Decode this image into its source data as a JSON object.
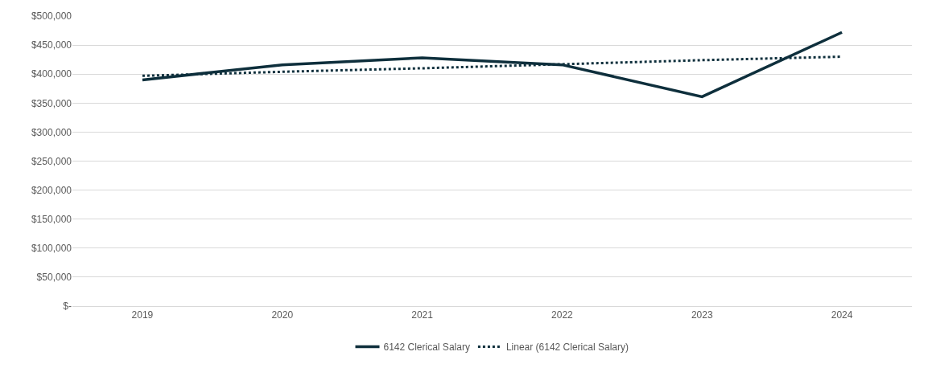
{
  "chart_data": {
    "type": "line",
    "categories": [
      "2019",
      "2020",
      "2021",
      "2022",
      "2023",
      "2024"
    ],
    "series": [
      {
        "name": "6142 Clerical Salary",
        "color": "#0e2f3c",
        "values": [
          390000,
          416000,
          428000,
          416000,
          361000,
          472000
        ],
        "line_style": "solid"
      },
      {
        "name": "Linear (6142 Clerical Salary)",
        "color": "#0e2f3c",
        "values": [
          397000,
          404000,
          410000,
          417000,
          424000,
          430000
        ],
        "line_style": "dotted"
      }
    ],
    "ylim": [
      0,
      500000
    ],
    "yticks": [
      {
        "value": 0,
        "label": "$-"
      },
      {
        "value": 50000,
        "label": "$50,000"
      },
      {
        "value": 100000,
        "label": "$100,000"
      },
      {
        "value": 150000,
        "label": "$150,000"
      },
      {
        "value": 200000,
        "label": "$200,000"
      },
      {
        "value": 250000,
        "label": "$250,000"
      },
      {
        "value": 300000,
        "label": "$300,000"
      },
      {
        "value": 350000,
        "label": "$350,000"
      },
      {
        "value": 400000,
        "label": "$400,000"
      },
      {
        "value": 450000,
        "label": "$450,000"
      },
      {
        "value": 500000,
        "label": "$500,000"
      }
    ],
    "grid": "y",
    "legend": "bottom",
    "marker": "none"
  }
}
